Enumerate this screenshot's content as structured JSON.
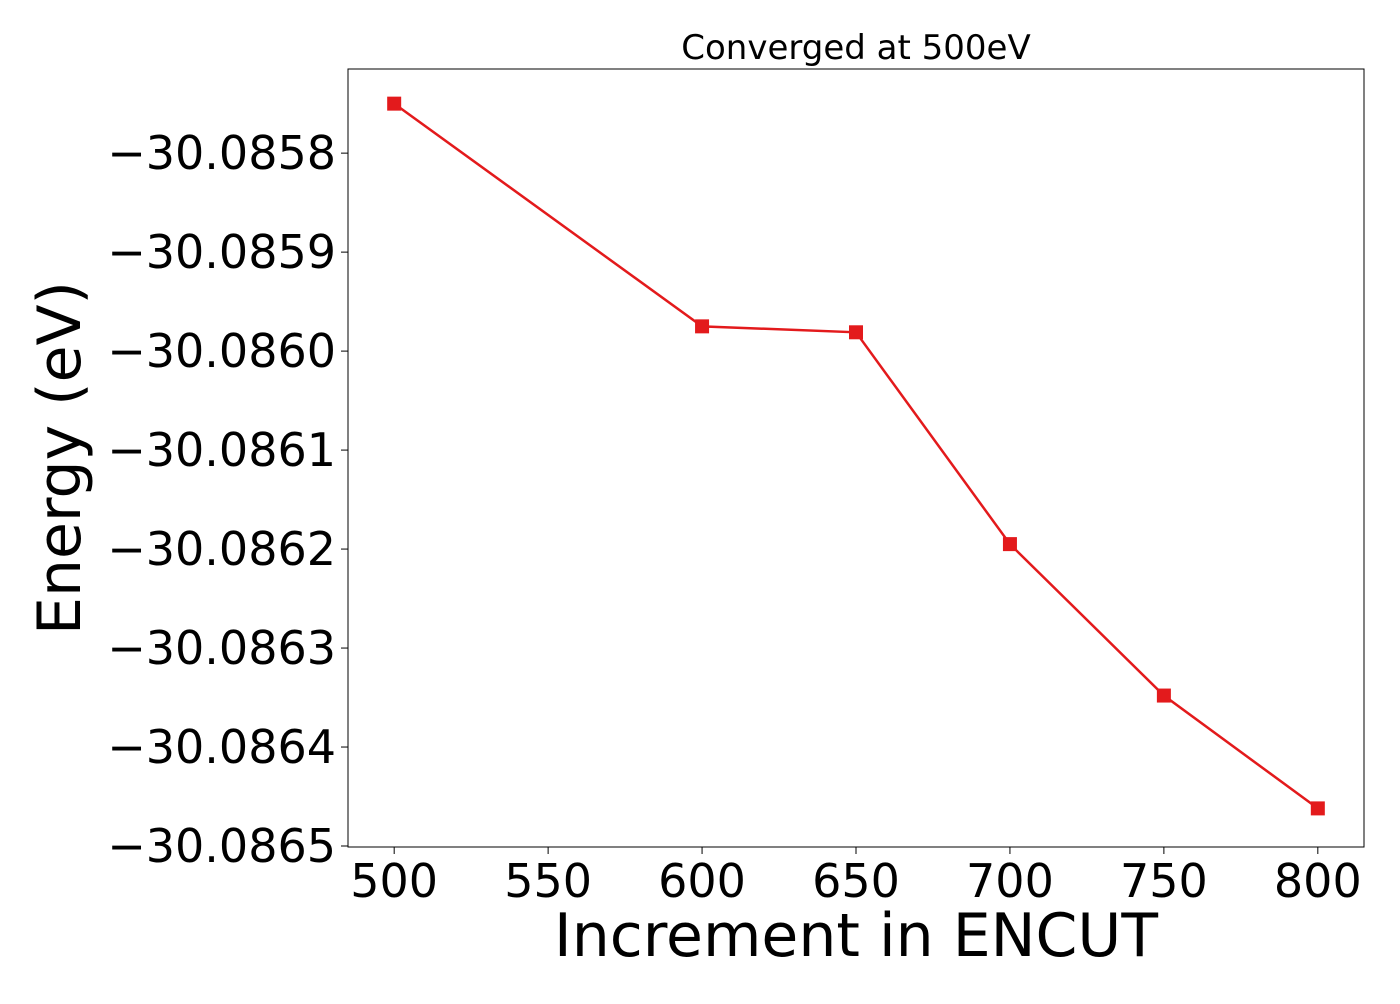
{
  "chart_data": {
    "type": "line",
    "title": "Converged at 500eV",
    "xlabel": "Increment in ENCUT",
    "ylabel": "Energy (eV)",
    "x": [
      500,
      600,
      650,
      700,
      750,
      800
    ],
    "series": [
      {
        "values": [
          -30.08575,
          -30.085975,
          -30.085981,
          -30.086195,
          -30.086348,
          -30.086462
        ],
        "color": "#e31a1c",
        "marker": "square"
      }
    ],
    "xlim": [
      485,
      815
    ],
    "ylim": [
      -30.086501,
      -30.085715
    ],
    "xticks": [
      500,
      550,
      600,
      650,
      700,
      750,
      800
    ],
    "xtick_labels": [
      "500",
      "550",
      "600",
      "650",
      "700",
      "750",
      "800"
    ],
    "yticks": [
      -30.0858,
      -30.0859,
      -30.086,
      -30.0861,
      -30.0862,
      -30.0863,
      -30.0864,
      -30.0865
    ],
    "ytick_labels": [
      "−30.0858",
      "−30.0859",
      "−30.0860",
      "−30.0861",
      "−30.0862",
      "−30.0863",
      "−30.0864",
      "−30.0865"
    ],
    "grid": false,
    "legend": "none"
  }
}
